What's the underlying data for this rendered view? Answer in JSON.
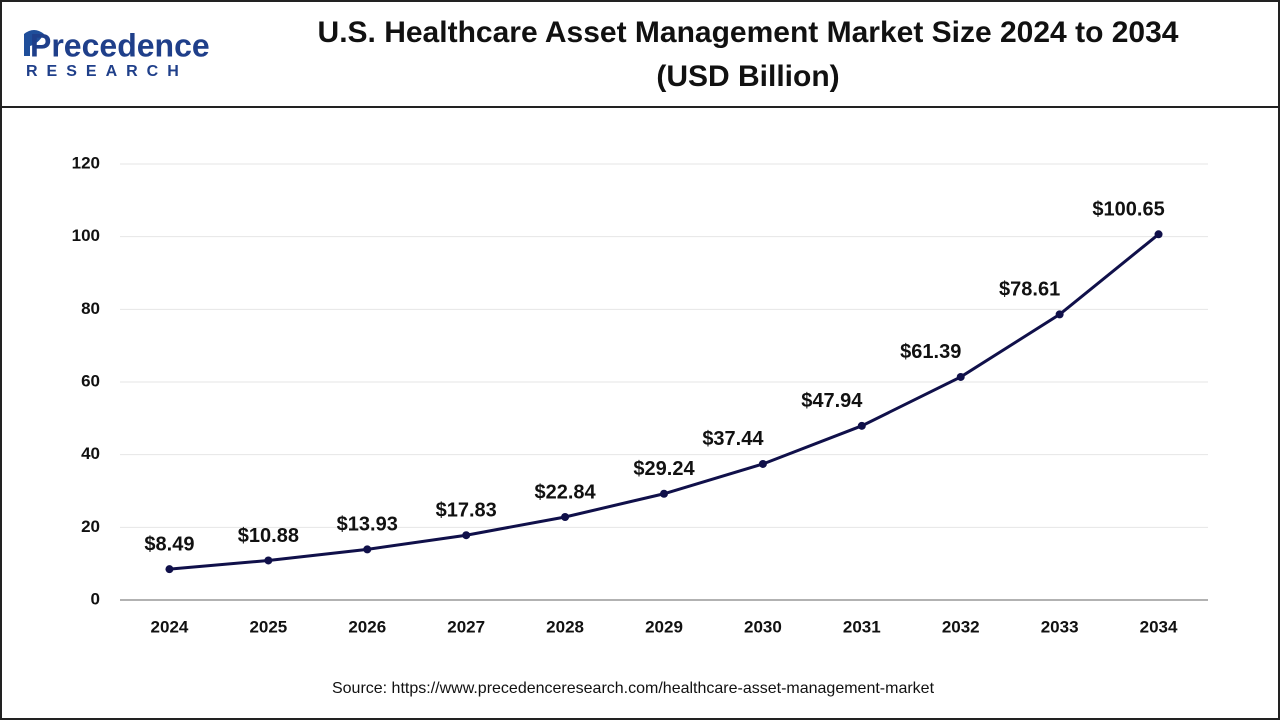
{
  "logo": {
    "name": "Precedence",
    "sub": "RESEARCH"
  },
  "chart_data": {
    "type": "line",
    "title_lines": [
      "U.S. Healthcare Asset Management Market Size 2024 to 2034",
      "(USD Billion)"
    ],
    "categories": [
      "2024",
      "2025",
      "2026",
      "2027",
      "2028",
      "2029",
      "2030",
      "2031",
      "2032",
      "2033",
      "2034"
    ],
    "values": [
      8.49,
      10.88,
      13.93,
      17.83,
      22.84,
      29.24,
      37.44,
      47.94,
      61.39,
      78.61,
      100.65
    ],
    "value_labels": [
      "$8.49",
      "$10.88",
      "$13.93",
      "$17.83",
      "$22.84",
      "$29.24",
      "$37.44",
      "$47.94",
      "$61.39",
      "$78.61",
      "$100.65"
    ],
    "color": "#10104a",
    "ylim": [
      0,
      120
    ],
    "yticks": [
      0,
      20,
      40,
      60,
      80,
      100,
      120
    ],
    "grid": true,
    "source": "Source: https://www.precedenceresearch.com/healthcare-asset-management-market"
  }
}
